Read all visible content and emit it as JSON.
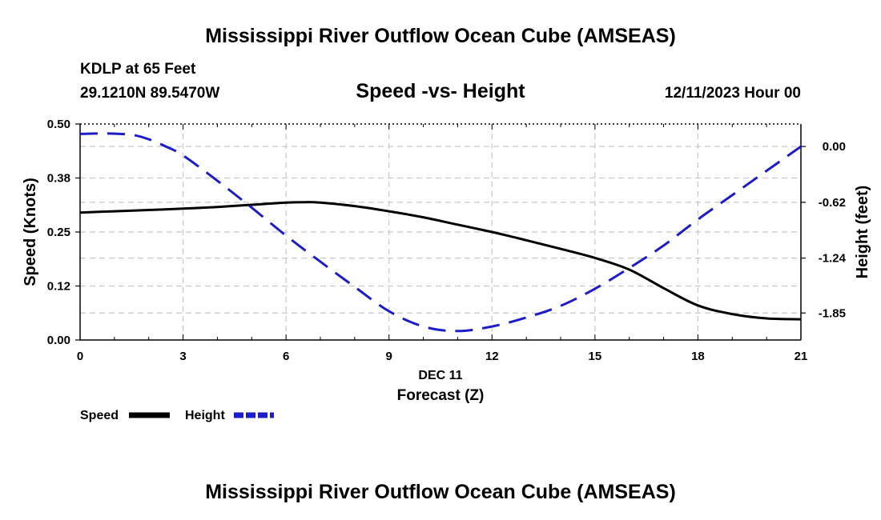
{
  "header": {
    "title": "Mississippi River Outflow Ocean Cube (AMSEAS)",
    "station": "KDLP at 65 Feet",
    "coordinates": "29.1210N  89.5470W",
    "datetime": "12/11/2023 Hour 00",
    "footer_title": "Mississippi River Outflow Ocean Cube (AMSEAS)"
  },
  "chart_data": {
    "type": "line",
    "title": "Speed -vs- Height",
    "xlabel": "Forecast (Z)",
    "xlabel_date": "DEC 11",
    "ylabel": "Speed (Knots)",
    "y2label": "Height (feet)",
    "xlim": [
      0,
      21
    ],
    "ylim": [
      0,
      0.5
    ],
    "y2lim": [
      -2.15,
      0.25
    ],
    "x_ticks": [
      0,
      3,
      6,
      9,
      12,
      15,
      18,
      21
    ],
    "x_tick_labels": [
      "0",
      "3",
      "6",
      "9",
      "12",
      "15",
      "18",
      "21"
    ],
    "y_ticks": [
      0,
      0.125,
      0.25,
      0.375,
      0.5
    ],
    "y_tick_labels": [
      "0.00",
      "0.12",
      "0.25",
      "0.38",
      "0.50"
    ],
    "y2_ticks": [
      0,
      -0.62,
      -1.24,
      -1.85
    ],
    "y2_tick_labels": [
      "0.00",
      "-0.62",
      "-1.24",
      "-1.85"
    ],
    "grid": true,
    "legend_position": "bottom-left",
    "series": [
      {
        "name": "Speed",
        "axis": "left",
        "color": "#000000",
        "style": "solid",
        "x": [
          0,
          1,
          2,
          3,
          4,
          5,
          6,
          6.5,
          7,
          8,
          9,
          10,
          11,
          12,
          13,
          14,
          15,
          16,
          17,
          18,
          19,
          20,
          21
        ],
        "values": [
          0.295,
          0.298,
          0.301,
          0.304,
          0.308,
          0.313,
          0.318,
          0.319,
          0.318,
          0.31,
          0.298,
          0.284,
          0.267,
          0.25,
          0.231,
          0.211,
          0.19,
          0.163,
          0.12,
          0.08,
          0.06,
          0.05,
          0.048
        ]
      },
      {
        "name": "Height",
        "axis": "right",
        "color": "#1c1cc8",
        "style": "dashed",
        "x": [
          0,
          0.75,
          1.5,
          2,
          2.5,
          3,
          4,
          5,
          6,
          7,
          8,
          9,
          10,
          11,
          12,
          13,
          14,
          15,
          16,
          17,
          18,
          19,
          20,
          21
        ],
        "values": [
          0.14,
          0.145,
          0.13,
          0.08,
          0.0,
          -0.1,
          -0.38,
          -0.68,
          -0.99,
          -1.28,
          -1.56,
          -1.83,
          -2.0,
          -2.05,
          -2.0,
          -1.9,
          -1.77,
          -1.58,
          -1.35,
          -1.1,
          -0.81,
          -0.54,
          -0.27,
          0.0
        ]
      }
    ]
  }
}
